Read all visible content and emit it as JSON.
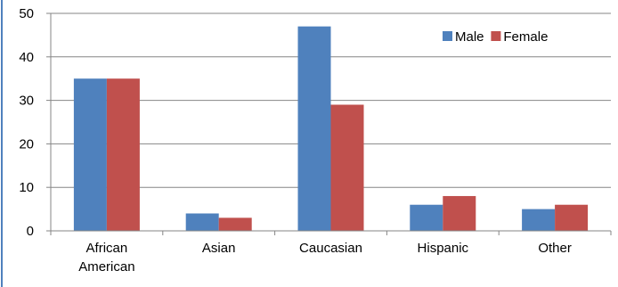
{
  "chart_data": {
    "type": "bar",
    "categories": [
      [
        "African",
        "American"
      ],
      [
        "Asian"
      ],
      [
        "Caucasian"
      ],
      [
        "Hispanic"
      ],
      [
        "Other"
      ]
    ],
    "series": [
      {
        "name": "Male",
        "values": [
          35,
          4,
          47,
          6,
          5
        ],
        "color": "#4F81BD"
      },
      {
        "name": "Female",
        "values": [
          35,
          3,
          29,
          8,
          6
        ],
        "color": "#C0504D"
      }
    ],
    "ylim": [
      0,
      50
    ],
    "yticks": [
      0,
      10,
      20,
      30,
      40,
      50
    ],
    "grid": true,
    "legend": "top-right",
    "title": "",
    "xlabel": "",
    "ylabel": ""
  }
}
